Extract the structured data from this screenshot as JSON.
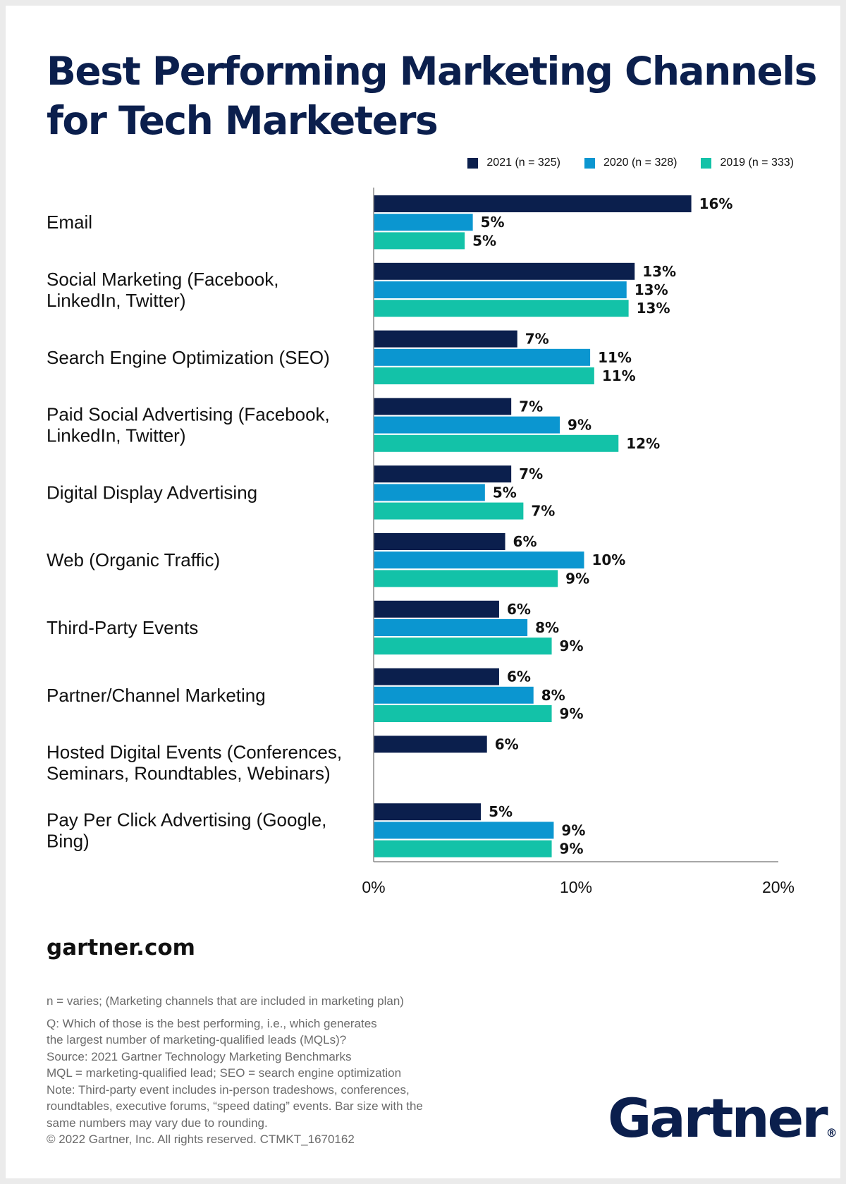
{
  "title_line1": "Best Performing Marketing Channels",
  "title_line2": "for Tech Marketers",
  "site": "gartner.com",
  "logo": "Gartner",
  "notes": [
    "n = varies; (Marketing channels that are included in marketing plan)",
    "Q: Which of those is the best performing, i.e., which generates",
    "the largest number of marketing-qualified leads (MQLs)?",
    "Source: 2021 Gartner Technology Marketing Benchmarks",
    "MQL = marketing-qualified lead; SEO = search engine optimization",
    "Note: Third-party event includes in-person tradeshows, conferences,",
    "roundtables, executive forums, “speed dating” events. Bar size with the",
    "same numbers may vary due to rounding.",
    "© 2022 Gartner, Inc. All rights reserved. CTMKT_1670162"
  ],
  "colors": {
    "navy": "#0b1f4d",
    "blue": "#0b96d0",
    "teal": "#13c2a8"
  },
  "chart_data": {
    "type": "bar",
    "orientation": "horizontal",
    "title": "Best Performing Marketing Channels for Tech Marketers",
    "categories": [
      [
        "Email"
      ],
      [
        "Social Marketing (Facebook,",
        "LinkedIn, Twitter)"
      ],
      [
        "Search Engine Optimization (SEO)"
      ],
      [
        "Paid Social Advertising (Facebook,",
        "LinkedIn, Twitter)"
      ],
      [
        "Digital Display Advertising"
      ],
      [
        "Web (Organic Traffic)"
      ],
      [
        "Third-Party Events"
      ],
      [
        "Partner/Channel Marketing"
      ],
      [
        "Hosted Digital Events (Conferences,",
        "Seminars, Roundtables, Webinars)"
      ],
      [
        "Pay Per Click Advertising (Google,",
        "Bing)"
      ]
    ],
    "series": [
      {
        "name": "2021 (n = 325)",
        "color": "#0b1f4d",
        "values": [
          15.7,
          12.9,
          7.1,
          6.8,
          6.8,
          6.5,
          6.2,
          6.2,
          5.6,
          5.3
        ],
        "labels": [
          "16%",
          "13%",
          "7%",
          "7%",
          "7%",
          "6%",
          "6%",
          "6%",
          "6%",
          "5%"
        ]
      },
      {
        "name": "2020 (n = 328)",
        "color": "#0b96d0",
        "values": [
          4.9,
          12.5,
          10.7,
          9.2,
          5.5,
          10.4,
          7.6,
          7.9,
          null,
          8.9
        ],
        "labels": [
          "5%",
          "13%",
          "11%",
          "9%",
          "5%",
          "10%",
          "8%",
          "8%",
          null,
          "9%"
        ]
      },
      {
        "name": "2019 (n = 333)",
        "color": "#13c2a8",
        "values": [
          4.5,
          12.6,
          10.9,
          12.1,
          7.4,
          9.1,
          8.8,
          8.8,
          null,
          8.8
        ],
        "labels": [
          "5%",
          "13%",
          "11%",
          "12%",
          "7%",
          "9%",
          "9%",
          "9%",
          null,
          "9%"
        ]
      }
    ],
    "xlim": [
      0,
      20
    ],
    "ticks": [
      0,
      10,
      20
    ],
    "tick_labels": [
      "0%",
      "10%",
      "20%"
    ],
    "legend_position": "top-right",
    "grid": false
  }
}
